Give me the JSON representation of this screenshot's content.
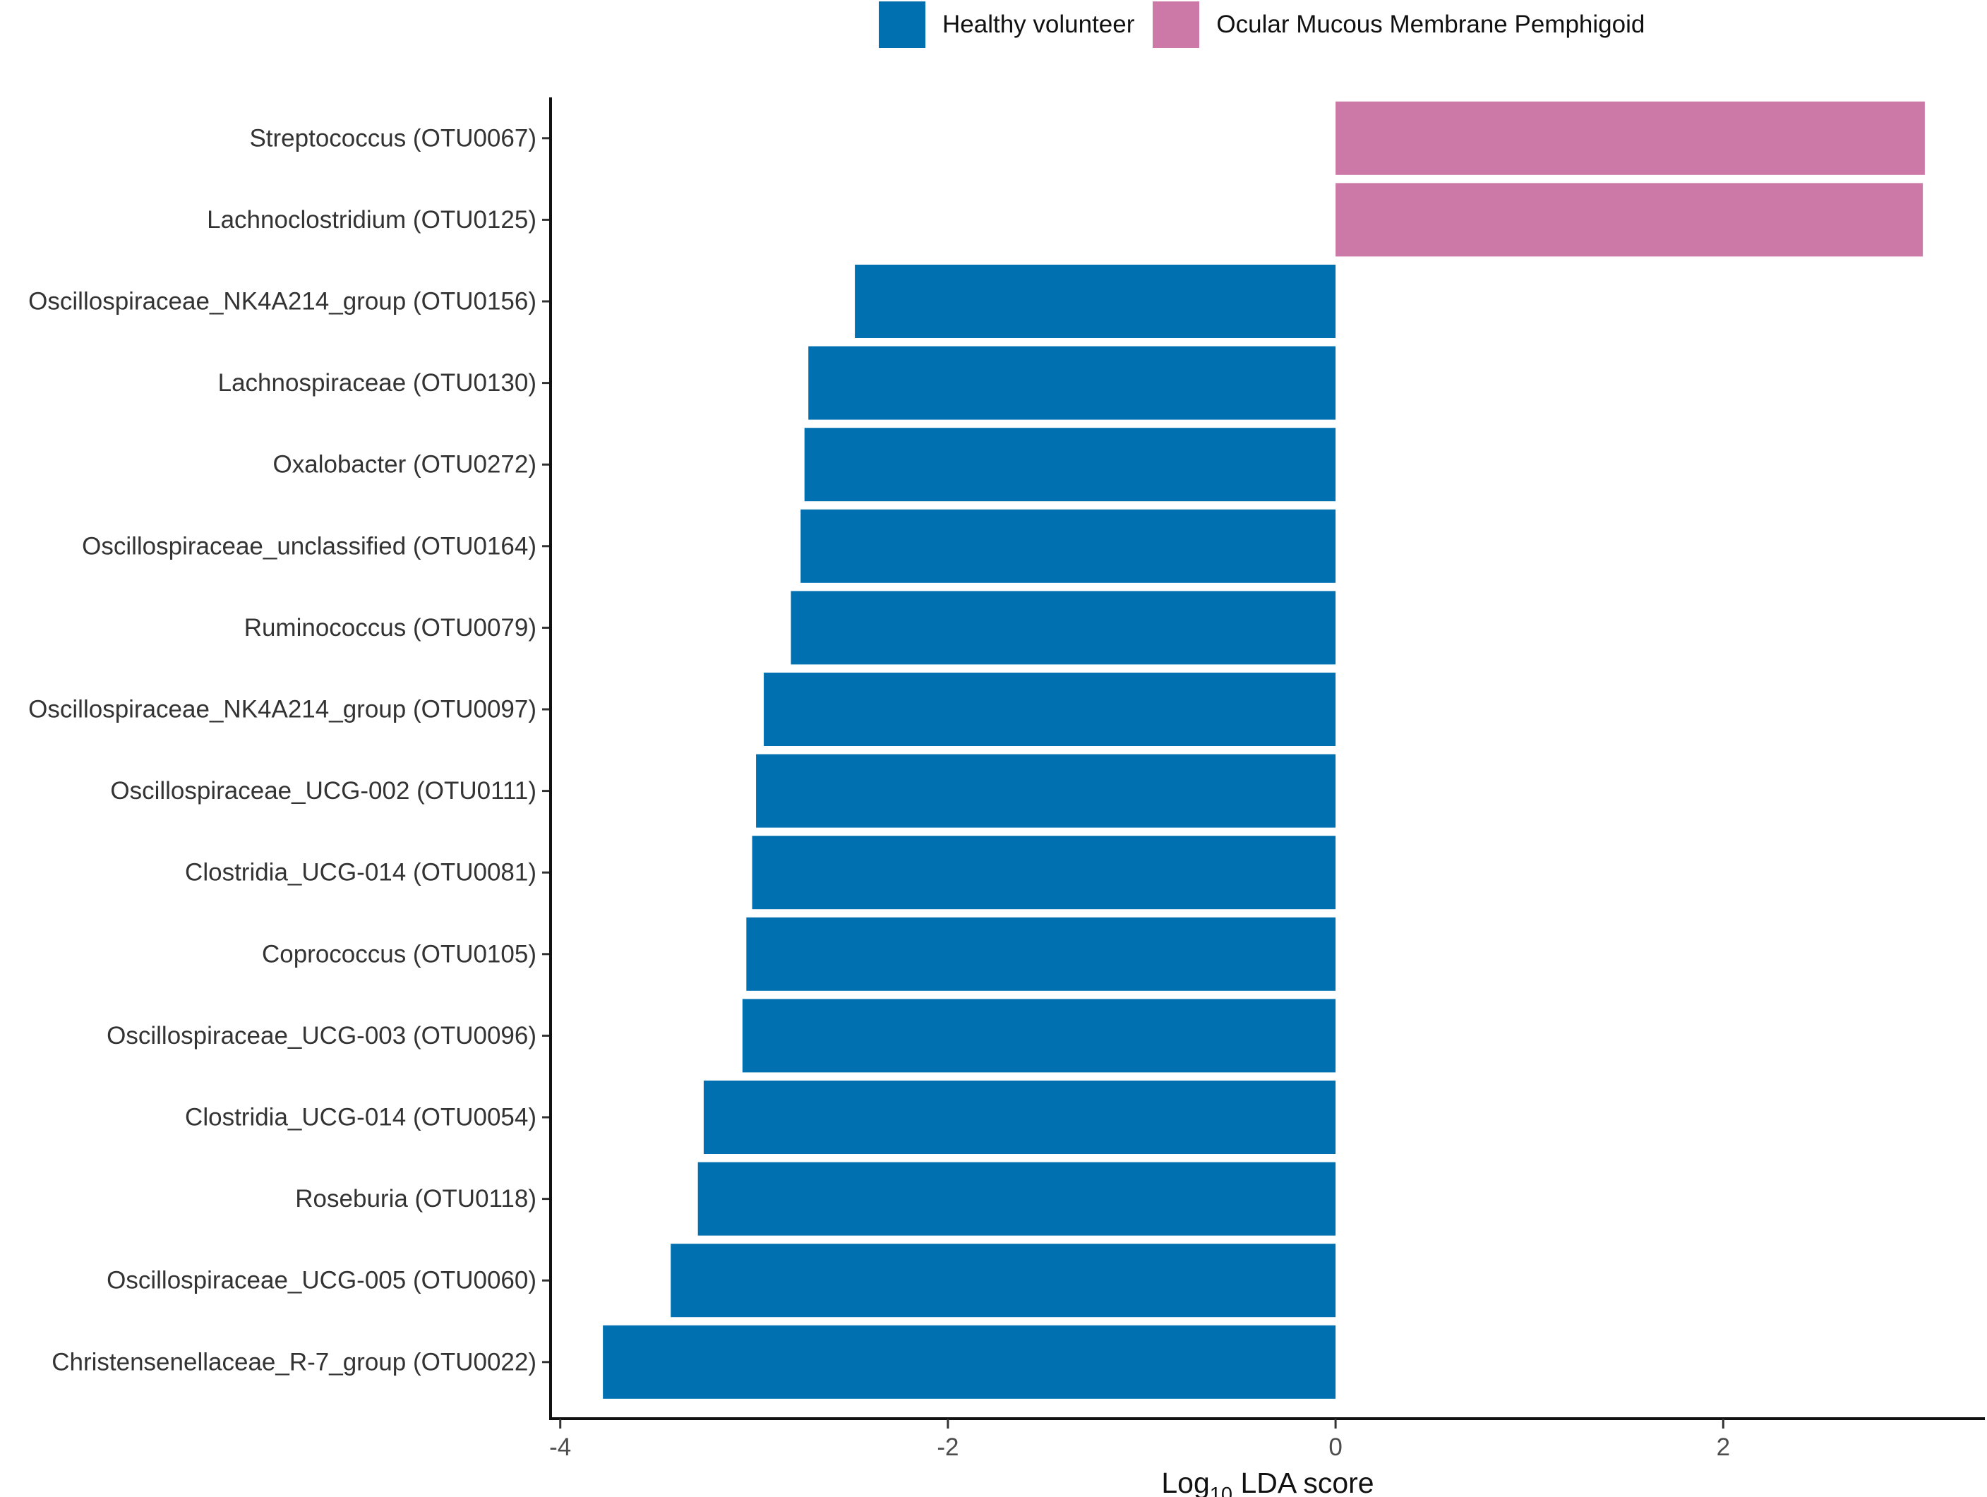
{
  "chart_data": {
    "type": "bar",
    "orientation": "horizontal",
    "title": "",
    "xlabel": "Log",
    "xlabel_subscript": "10",
    "xlabel_suffix": " LDA score",
    "ylabel": "",
    "xlim": [
      -4.05,
      3.35
    ],
    "xticks": [
      -4,
      -2,
      0,
      2
    ],
    "xtick_labels": [
      "-4",
      "-2",
      "0",
      "2"
    ],
    "grid": false,
    "legend_position": "top",
    "legend": [
      {
        "name": "Healthy volunteer",
        "color": "#0070B0"
      },
      {
        "name": "Ocular Mucous Membrane Pemphigoid",
        "color": "#CC79A7"
      }
    ],
    "categories": [
      "Streptococcus (OTU0067)",
      "Lachnoclostridium (OTU0125)",
      "Oscillospiraceae_NK4A214_group (OTU0156)",
      "Lachnospiraceae (OTU0130)",
      "Oxalobacter (OTU0272)",
      "Oscillospiraceae_unclassified (OTU0164)",
      "Ruminococcus (OTU0079)",
      "Oscillospiraceae_NK4A214_group (OTU0097)",
      "Oscillospiraceae_UCG-002 (OTU0111)",
      "Clostridia_UCG-014 (OTU0081)",
      "Coprococcus (OTU0105)",
      "Oscillospiraceae_UCG-003 (OTU0096)",
      "Clostridia_UCG-014 (OTU0054)",
      "Roseburia (OTU0118)",
      "Oscillospiraceae_UCG-005 (OTU0060)",
      "Christensenellaceae_R-7_group (OTU0022)"
    ],
    "values": [
      3.04,
      3.03,
      -2.48,
      -2.72,
      -2.74,
      -2.76,
      -2.81,
      -2.95,
      -2.99,
      -3.01,
      -3.04,
      -3.06,
      -3.26,
      -3.29,
      -3.43,
      -3.78
    ],
    "groups": [
      "Ocular Mucous Membrane Pemphigoid",
      "Ocular Mucous Membrane Pemphigoid",
      "Healthy volunteer",
      "Healthy volunteer",
      "Healthy volunteer",
      "Healthy volunteer",
      "Healthy volunteer",
      "Healthy volunteer",
      "Healthy volunteer",
      "Healthy volunteer",
      "Healthy volunteer",
      "Healthy volunteer",
      "Healthy volunteer",
      "Healthy volunteer",
      "Healthy volunteer",
      "Healthy volunteer"
    ]
  }
}
